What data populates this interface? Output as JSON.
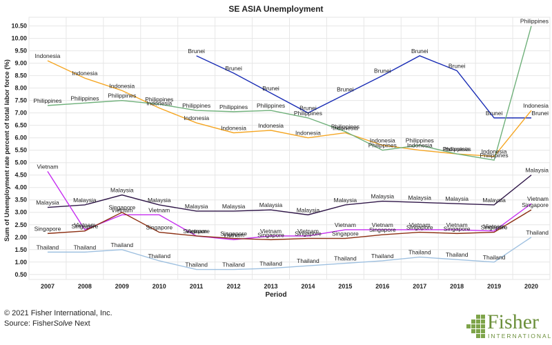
{
  "chart_data": {
    "type": "line",
    "title": "SE ASIA Unemployment",
    "xlabel": "Period",
    "ylabel": "Sum of Unemployment rate percent of total labor force (%)",
    "ylim": [
      0.3,
      10.85
    ],
    "yticks": [
      "0.50",
      "1.00",
      "1.50",
      "2.00",
      "2.50",
      "3.00",
      "3.50",
      "4.00",
      "4.50",
      "5.00",
      "5.50",
      "6.00",
      "6.50",
      "7.00",
      "7.50",
      "8.00",
      "8.50",
      "9.00",
      "9.50",
      "10.00",
      "10.50"
    ],
    "ytick_values": [
      0.5,
      1,
      1.5,
      2,
      2.5,
      3,
      3.5,
      4,
      4.5,
      5,
      5.5,
      6,
      6.5,
      7,
      7.5,
      8,
      8.5,
      9,
      9.5,
      10,
      10.5
    ],
    "categories": [
      "2007",
      "2008",
      "2009",
      "2010",
      "2011",
      "2012",
      "2013",
      "2014",
      "2015",
      "2016",
      "2017",
      "2018",
      "2019",
      "2020"
    ],
    "grid": true,
    "series": [
      {
        "name": "Brunei",
        "color": "#1a2db5",
        "values": [
          null,
          null,
          null,
          null,
          9.3,
          8.6,
          7.8,
          7.0,
          7.75,
          8.5,
          9.3,
          8.7,
          6.8,
          6.8
        ]
      },
      {
        "name": "Indonesia",
        "color": "#f5a623",
        "values": [
          9.1,
          8.4,
          7.9,
          7.2,
          6.6,
          6.2,
          6.3,
          6.0,
          6.2,
          5.7,
          5.5,
          5.35,
          5.25,
          7.1
        ]
      },
      {
        "name": "Philippines",
        "color": "#6fb07a",
        "values": [
          7.3,
          7.4,
          7.5,
          7.35,
          7.1,
          7.05,
          7.1,
          6.8,
          6.25,
          5.5,
          5.7,
          5.35,
          5.1,
          10.5
        ]
      },
      {
        "name": "Malaysia",
        "color": "#2e1547",
        "values": [
          3.2,
          3.3,
          3.7,
          3.3,
          3.05,
          3.05,
          3.1,
          2.9,
          3.3,
          3.45,
          3.4,
          3.35,
          3.3,
          4.5
        ]
      },
      {
        "name": "Vietnam",
        "color": "#c62df0",
        "values": [
          4.65,
          2.3,
          2.9,
          2.9,
          2.05,
          1.9,
          2.05,
          2.05,
          2.3,
          2.3,
          2.3,
          2.3,
          2.25,
          3.35
        ]
      },
      {
        "name": "Singapore",
        "color": "#8c2f12",
        "values": [
          2.15,
          2.25,
          3.0,
          2.2,
          2.05,
          1.95,
          1.9,
          1.95,
          1.95,
          2.1,
          2.2,
          2.15,
          2.2,
          3.1
        ]
      },
      {
        "name": "Thailand",
        "color": "#9ec0e0",
        "values": [
          1.4,
          1.4,
          1.5,
          1.05,
          0.7,
          0.7,
          0.75,
          0.85,
          0.95,
          1.05,
          1.2,
          1.1,
          1.0,
          2.0
        ]
      }
    ]
  },
  "footer": {
    "copyright": "© 2021 Fisher International, Inc.",
    "source_prefix": "Source: Fisher",
    "source_italic": "Solve",
    "source_suffix": " Next"
  },
  "logo": {
    "word": "Fisher",
    "sub": "INTERNATIONAL"
  }
}
